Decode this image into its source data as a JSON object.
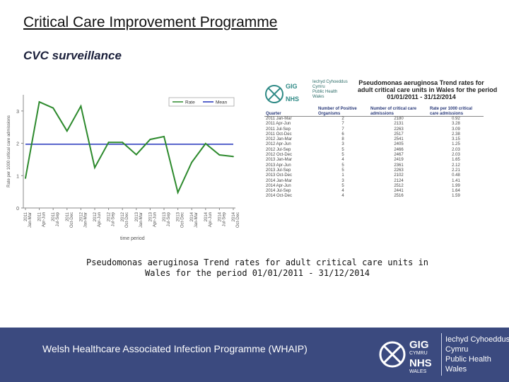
{
  "slide": {
    "title": "Critical Care Improvement Programme",
    "subtitle": "CVC surveillance",
    "caption_line1": "Pseudomonas aeruginosa Trend rates for adult critical care units in",
    "caption_line2": "Wales for the period 01/01/2011 - 31/12/2014"
  },
  "chart_data": {
    "type": "line",
    "ylabel": "Rate per 1000 critical care admissions",
    "xlabel": "time period",
    "ylim": [
      0,
      3.5
    ],
    "yticks": [
      "0",
      "1",
      "2",
      "3"
    ],
    "legend": [
      "Rate",
      "Mean"
    ],
    "legend_position": "top-right",
    "categories": [
      "2011 Jan-Mar",
      "2011 Apr-Jun",
      "2011 Jul-Sep",
      "2011 Oct-Dec",
      "2012 Jan-Mar",
      "2012 Apr-Jun",
      "2012 Jul-Sep",
      "2012 Oct-Dec",
      "2013 Jan-Mar",
      "2013 Apr-Jun",
      "2013 Jul-Sep",
      "2013 Oct-Dec",
      "2014 Jan-Mar",
      "2014 Apr-Jun",
      "2014 Jul-Sep",
      "2014 Oct-Dec"
    ],
    "tick_labels": [
      [
        "2011",
        "Jan-Mar"
      ],
      [
        "2011",
        "Apr-Jun"
      ],
      [
        "2011",
        "Jul-Sep"
      ],
      [
        "2011",
        "Oct-Dec"
      ],
      [
        "2012",
        "Jan-Mar"
      ],
      [
        "2012",
        "Apr-Jun"
      ],
      [
        "2012",
        "Jul-Sep"
      ],
      [
        "2012",
        "Oct-Dec"
      ],
      [
        "2013",
        "Jan-Mar"
      ],
      [
        "2013",
        "Apr-Jun"
      ],
      [
        "2013",
        "Jul-Sep"
      ],
      [
        "2013",
        "Oct-Dec"
      ],
      [
        "2014",
        "Jan-Mar"
      ],
      [
        "2014",
        "Apr-Jun"
      ],
      [
        "2014",
        "Jul-Sep"
      ],
      [
        "2014",
        "Oct-Dec"
      ]
    ],
    "series": [
      {
        "name": "Rate",
        "color": "#2d8a2d",
        "values": [
          0.92,
          3.28,
          3.09,
          2.38,
          3.15,
          1.25,
          2.03,
          2.03,
          1.65,
          2.12,
          2.21,
          0.48,
          1.41,
          1.99,
          1.64,
          1.59
        ]
      },
      {
        "name": "Mean",
        "color": "#2233bb",
        "values": [
          1.97,
          1.97,
          1.97,
          1.97,
          1.97,
          1.97,
          1.97,
          1.97,
          1.97,
          1.97,
          1.97,
          1.97,
          1.97,
          1.97,
          1.97,
          1.97
        ]
      }
    ],
    "grid": false
  },
  "table_panel": {
    "logo_lines": [
      "Iechyd Cyhoeddus",
      "Cymru",
      "Public Health",
      "Wales"
    ],
    "title_lines": [
      "Pseudomonas aeruginosa Trend rates for",
      "adult critical care units in Wales for the period",
      "01/01/2011 - 31/12/2014"
    ],
    "headers": [
      "Quarter",
      "Number of Positive Organisms",
      "Number of critical care admissions",
      "Rate per 1000 critical care admissions"
    ],
    "rows": [
      [
        "2011 Jan-Mar",
        "2",
        "2180",
        "0.92"
      ],
      [
        "2011 Apr-Jun",
        "7",
        "2131",
        "3.28"
      ],
      [
        "2011 Jul-Sep",
        "7",
        "2263",
        "3.09"
      ],
      [
        "2011 Oct-Dec",
        "6",
        "2517",
        "2.38"
      ],
      [
        "2012 Jan-Mar",
        "8",
        "2541",
        "3.15"
      ],
      [
        "2012 Apr-Jun",
        "3",
        "2405",
        "1.25"
      ],
      [
        "2012 Jul-Sep",
        "5",
        "2466",
        "2.03"
      ],
      [
        "2012 Oct-Dec",
        "5",
        "2467",
        "2.03"
      ],
      [
        "2013 Jan-Mar",
        "4",
        "2419",
        "1.65"
      ],
      [
        "2013 Apr-Jun",
        "5",
        "2361",
        "2.12"
      ],
      [
        "2013 Jul-Sep",
        "5",
        "2263",
        "2.21"
      ],
      [
        "2013 Oct-Dec",
        "1",
        "2102",
        "0.48"
      ],
      [
        "2014 Jan-Mar",
        "3",
        "2124",
        "1.41"
      ],
      [
        "2014 Apr-Jun",
        "5",
        "2512",
        "1.99"
      ],
      [
        "2014 Jul-Sep",
        "4",
        "2441",
        "1.64"
      ],
      [
        "2014 Oct-Dec",
        "4",
        "2516",
        "1.59"
      ]
    ]
  },
  "footer": {
    "text": "Welsh Healthcare Associated Infection Programme (WHAIP)",
    "logo_lines": [
      "Iechyd Cyhoeddus",
      "Cymru",
      "Public Health",
      "Wales"
    ],
    "logo_words": [
      "GIG",
      "CYMRU",
      "NHS",
      "WALES"
    ],
    "background": "#3b4a7f"
  }
}
